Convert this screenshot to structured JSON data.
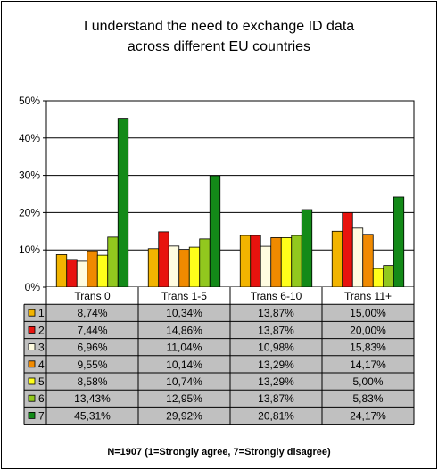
{
  "chart_data": {
    "type": "bar",
    "title_lines": [
      "I understand the need to exchange ID data",
      "across different EU countries"
    ],
    "categories": [
      "Trans 0",
      "Trans 1-5",
      "Trans 6-10",
      "Trans 11+"
    ],
    "ylim": [
      0,
      50
    ],
    "yticks": [
      "0%",
      "10%",
      "20%",
      "30%",
      "40%",
      "50%"
    ],
    "grid": true,
    "legend": "data-table",
    "series": [
      {
        "name": "1",
        "color": "#F2B400",
        "values": [
          8.74,
          10.34,
          13.87,
          15.0
        ],
        "labels": [
          "8,74%",
          "10,34%",
          "13,87%",
          "15,00%"
        ]
      },
      {
        "name": "2",
        "color": "#E8130E",
        "values": [
          7.44,
          14.86,
          13.87,
          20.0
        ],
        "labels": [
          "7,44%",
          "14,86%",
          "13,87%",
          "20,00%"
        ]
      },
      {
        "name": "3",
        "color": "#FFFCE0",
        "values": [
          6.96,
          11.04,
          10.98,
          15.83
        ],
        "labels": [
          "6,96%",
          "11,04%",
          "10,98%",
          "15,83%"
        ]
      },
      {
        "name": "4",
        "color": "#F08A00",
        "values": [
          9.55,
          10.14,
          13.29,
          14.17
        ],
        "labels": [
          "9,55%",
          "10,14%",
          "13,29%",
          "14,17%"
        ]
      },
      {
        "name": "5",
        "color": "#FFFF1A",
        "values": [
          8.58,
          10.74,
          13.29,
          5.0
        ],
        "labels": [
          "8,58%",
          "10,74%",
          "13,29%",
          "5,00%"
        ]
      },
      {
        "name": "6",
        "color": "#92C81E",
        "values": [
          13.43,
          12.95,
          13.87,
          5.83
        ],
        "labels": [
          "13,43%",
          "12,95%",
          "13,87%",
          "5,83%"
        ]
      },
      {
        "name": "7",
        "color": "#138A18",
        "values": [
          45.31,
          29.92,
          20.81,
          24.17
        ],
        "labels": [
          "45,31%",
          "29,92%",
          "20,81%",
          "24,17%"
        ]
      }
    ],
    "footnote": "N=1907 (1=Strongly agree, 7=Strongly disagree)"
  }
}
